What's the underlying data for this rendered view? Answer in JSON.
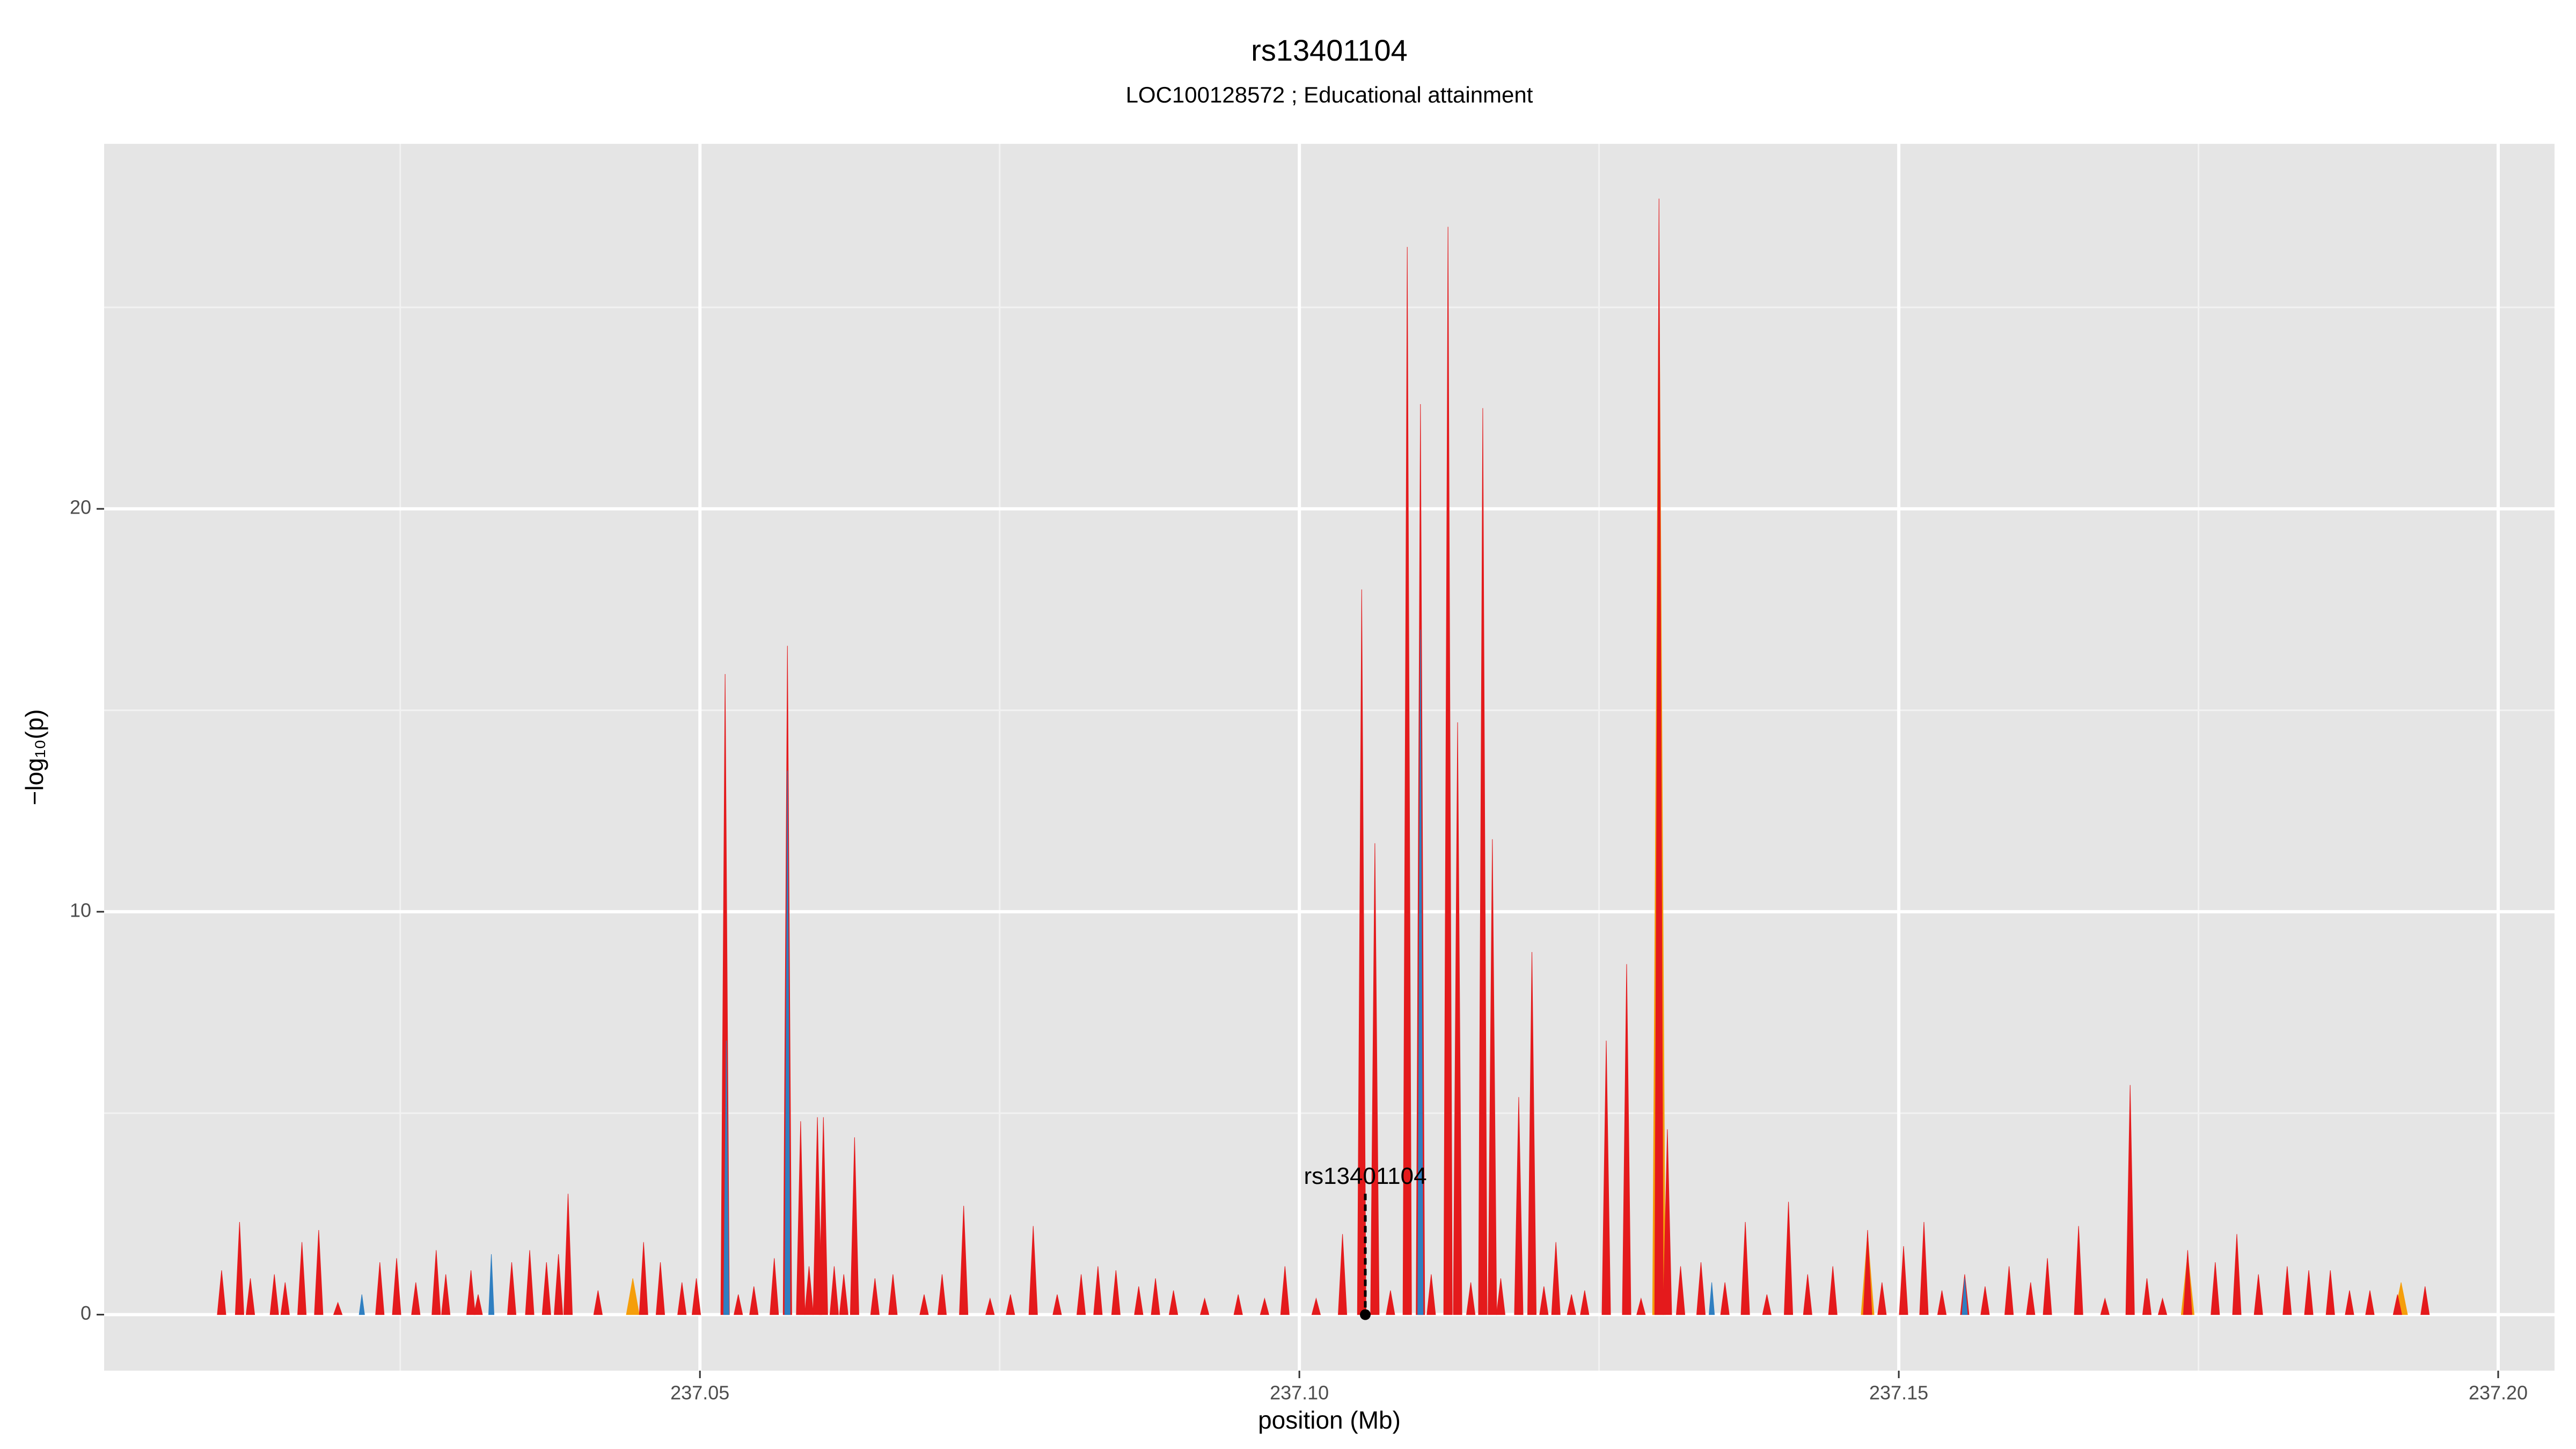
{
  "chart_data": {
    "type": "spike",
    "title": "rs13401104",
    "subtitle": "LOC100128572 ; Educational attainment",
    "xlabel": "position (Mb)",
    "ylabel": "−log₁₀(p)",
    "xlim": [
      237.0003,
      237.2047
    ],
    "ylim": [
      -1.39,
      29.06
    ],
    "xticks": [
      237.05,
      {
        "value": 237.1,
        "label": "237.10"
      },
      237.15,
      {
        "value": 237.2,
        "label": "237.20"
      }
    ],
    "yticks": [
      0,
      10,
      20
    ],
    "xminor": [
      237.025,
      237.075,
      237.125,
      237.175
    ],
    "yminor": [
      5,
      15,
      25
    ],
    "grid": true,
    "series": [
      {
        "color": "#f59e0b",
        "x": [
          237.0444,
          237.13,
          237.1474,
          237.1741,
          237.1919
        ],
        "values": [
          0.9,
          26.5,
          2.0,
          1.5,
          0.8
        ]
      },
      {
        "color": "#e41a1c",
        "x": [
          237.0101,
          237.0116,
          237.0125,
          237.0145,
          237.0154,
          237.0168,
          237.0182,
          237.0198,
          237.0233,
          237.0247,
          237.0263,
          237.028,
          237.0288,
          237.0309,
          237.0315,
          237.0343,
          237.0358,
          237.0372,
          237.0382,
          237.039,
          237.0415,
          237.0453,
          237.0467,
          237.0485,
          237.0497,
          237.0521,
          237.0532,
          237.0545,
          237.0562,
          237.0573,
          237.0584,
          237.0591,
          237.0598,
          237.0603,
          237.0612,
          237.062,
          237.0629,
          237.0646,
          237.0661,
          237.0687,
          237.0702,
          237.072,
          237.0742,
          237.0759,
          237.0778,
          237.0798,
          237.0818,
          237.0832,
          237.0847,
          237.0866,
          237.088,
          237.0895,
          237.0921,
          237.0949,
          237.0971,
          237.0988,
          237.1014,
          237.1036,
          237.1052,
          237.1063,
          237.1076,
          237.109,
          237.1101,
          237.111,
          237.1124,
          237.1132,
          237.1143,
          237.1153,
          237.1161,
          237.1168,
          237.1183,
          237.1194,
          237.1204,
          237.1214,
          237.1227,
          237.1238,
          237.1256,
          237.1273,
          237.1285,
          237.13,
          237.1307,
          237.1318,
          237.1335,
          237.1355,
          237.1372,
          237.139,
          237.1408,
          237.1424,
          237.1445,
          237.1474,
          237.1486,
          237.1504,
          237.1521,
          237.1536,
          237.1555,
          237.1572,
          237.1592,
          237.161,
          237.1624,
          237.165,
          237.1672,
          237.1693,
          237.1707,
          237.172,
          237.1741,
          237.1764,
          237.1782,
          237.18,
          237.1824,
          237.1842,
          237.186,
          237.1876,
          237.1893,
          237.1916,
          237.1939
        ],
        "values": [
          1.1,
          2.3,
          0.9,
          1.0,
          0.8,
          1.8,
          2.1,
          0.3,
          1.3,
          1.4,
          0.8,
          1.6,
          1.0,
          1.1,
          0.5,
          1.3,
          1.6,
          1.3,
          1.5,
          3.0,
          0.6,
          1.8,
          1.3,
          0.8,
          0.9,
          15.9,
          0.5,
          0.7,
          1.4,
          16.6,
          4.8,
          1.2,
          4.9,
          4.9,
          1.2,
          1.0,
          4.4,
          0.9,
          1.0,
          0.5,
          1.0,
          2.7,
          0.4,
          0.5,
          2.2,
          0.5,
          1.0,
          1.2,
          1.1,
          0.7,
          0.9,
          0.6,
          0.4,
          0.5,
          0.4,
          1.2,
          0.4,
          2.0,
          18.0,
          11.7,
          0.6,
          26.5,
          22.6,
          1.0,
          27.0,
          14.7,
          0.8,
          22.5,
          11.8,
          0.9,
          5.4,
          9.0,
          0.7,
          1.8,
          0.5,
          0.6,
          6.8,
          8.7,
          0.4,
          27.7,
          4.6,
          1.2,
          1.3,
          0.8,
          2.3,
          0.5,
          2.8,
          1.0,
          1.2,
          2.1,
          0.8,
          1.7,
          2.3,
          0.6,
          1.0,
          0.7,
          1.2,
          0.8,
          1.4,
          2.2,
          0.4,
          5.7,
          0.9,
          0.4,
          1.6,
          1.3,
          2.0,
          1.0,
          1.2,
          1.1,
          1.1,
          0.6,
          0.6,
          0.5,
          0.7
        ]
      },
      {
        "color": "#2f7fc1",
        "x": [
          237.0218,
          237.0326,
          237.0522,
          237.0573,
          237.1101,
          237.1344,
          237.1555
        ],
        "values": [
          0.5,
          1.5,
          6.8,
          13.5,
          17,
          0.8,
          0.9
        ]
      }
    ],
    "annotation": {
      "text": "rs13401104",
      "x": 237.1055,
      "y": 3.4,
      "point_y": 0
    }
  }
}
